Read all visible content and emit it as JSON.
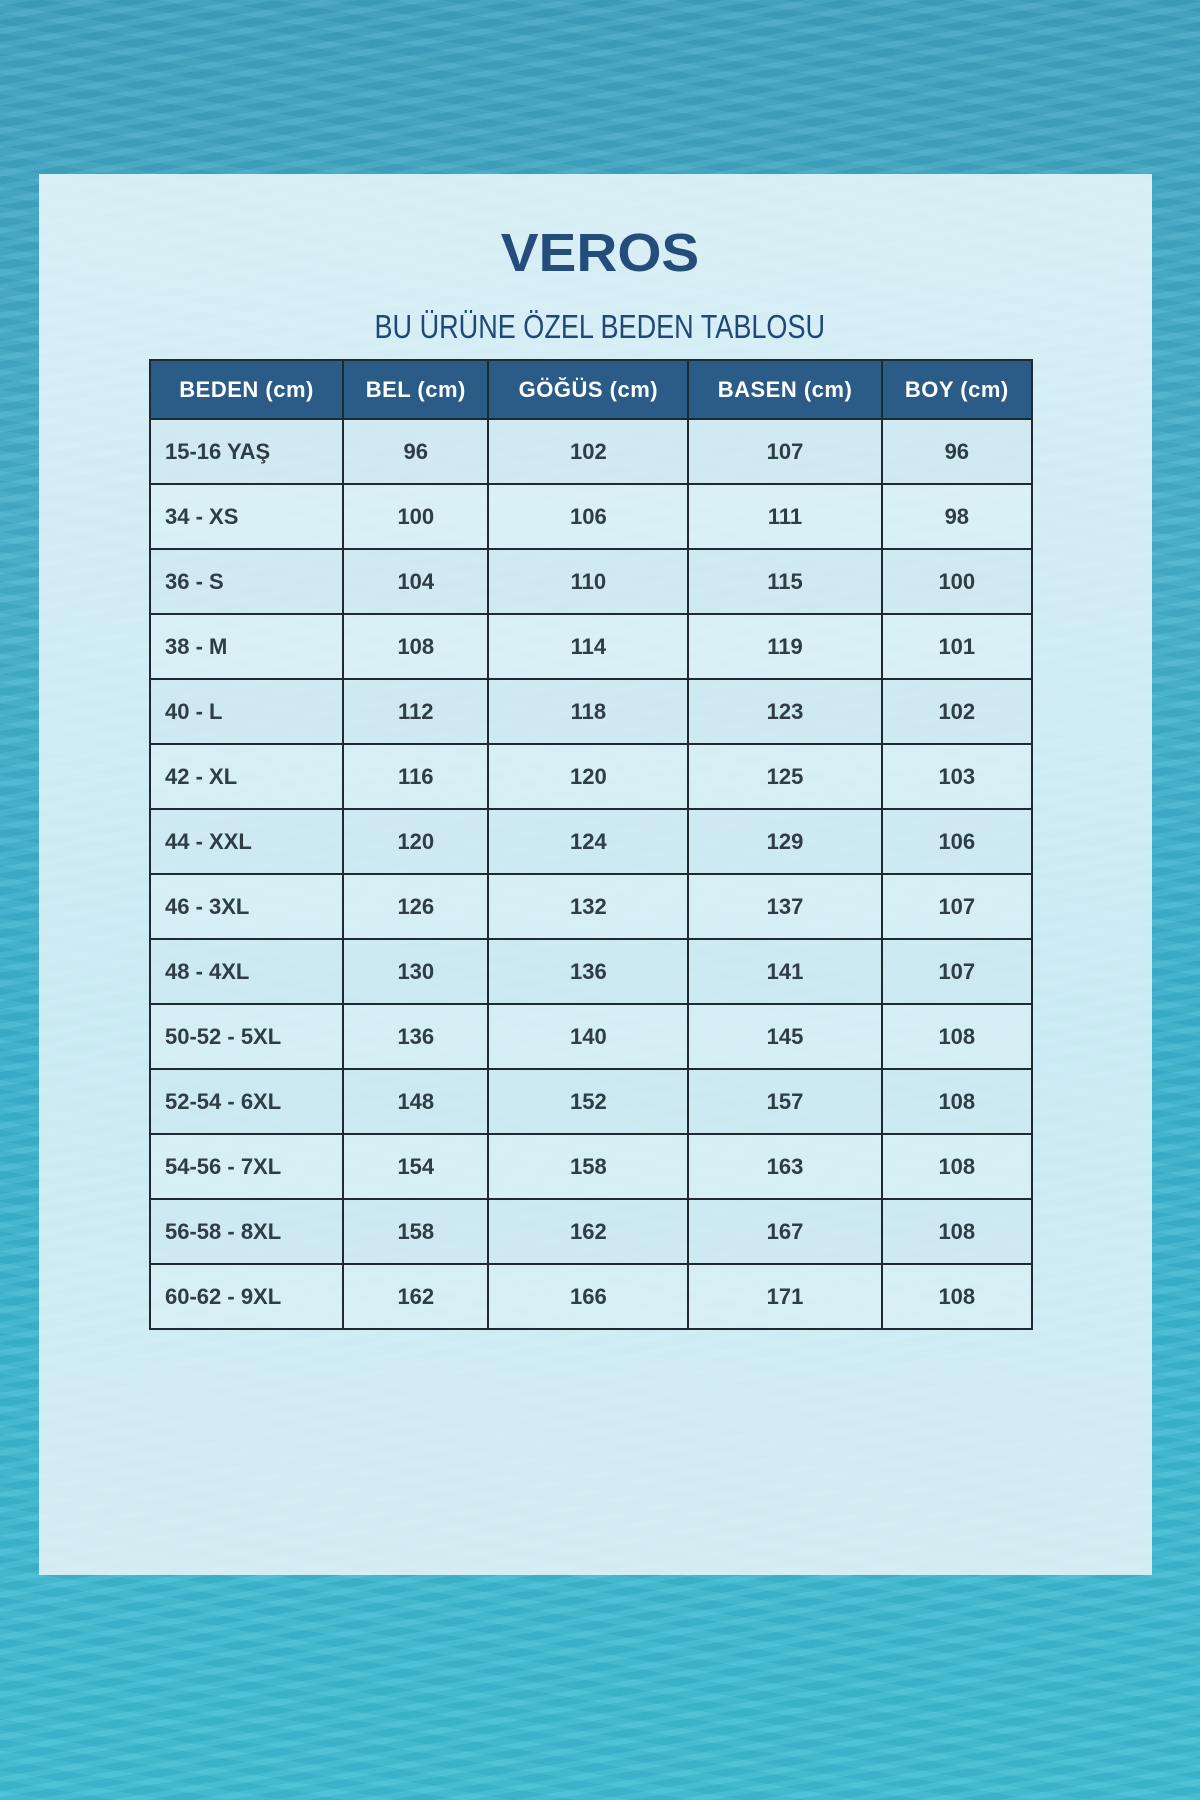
{
  "brand": "VEROS",
  "subtitle": "BU ÜRÜNE ÖZEL BEDEN TABLOSU",
  "table": {
    "headers": [
      "BEDEN (cm)",
      "BEL (cm)",
      "GÖĞÜS (cm)",
      "BASEN (cm)",
      "BOY (cm)"
    ],
    "rows": [
      [
        "15-16 YAŞ",
        "96",
        "102",
        "107",
        "96"
      ],
      [
        "34 - XS",
        "100",
        "106",
        "111",
        "98"
      ],
      [
        "36 - S",
        "104",
        "110",
        "115",
        "100"
      ],
      [
        "38 - M",
        "108",
        "114",
        "119",
        "101"
      ],
      [
        "40 - L",
        "112",
        "118",
        "123",
        "102"
      ],
      [
        "42 - XL",
        "116",
        "120",
        "125",
        "103"
      ],
      [
        "44 - XXL",
        "120",
        "124",
        "129",
        "106"
      ],
      [
        "46 - 3XL",
        "126",
        "132",
        "137",
        "107"
      ],
      [
        "48 - 4XL",
        "130",
        "136",
        "141",
        "107"
      ],
      [
        "50-52 - 5XL",
        "136",
        "140",
        "145",
        "108"
      ],
      [
        "52-54 - 6XL",
        "148",
        "152",
        "157",
        "108"
      ],
      [
        "54-56 - 7XL",
        "154",
        "158",
        "163",
        "108"
      ],
      [
        "56-58 - 8XL",
        "158",
        "162",
        "167",
        "108"
      ],
      [
        "60-62 - 9XL",
        "162",
        "166",
        "171",
        "108"
      ]
    ]
  },
  "colors": {
    "brand": "#254d7b",
    "header_bg": "#2b5c88",
    "background": "#3fb0cc"
  }
}
